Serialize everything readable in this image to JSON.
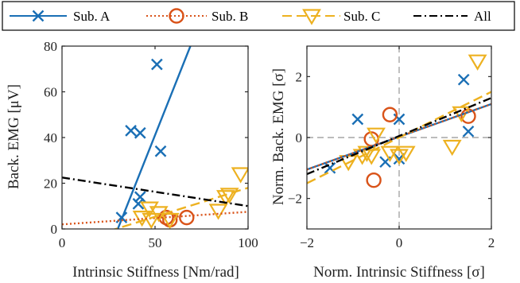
{
  "legend": {
    "entries": [
      {
        "label": "Sub. A",
        "color": "#1a6fb5",
        "marker": "x",
        "dash": ""
      },
      {
        "label": "Sub. B",
        "color": "#d95319",
        "marker": "circle",
        "dash": "2,3"
      },
      {
        "label": "Sub. C",
        "color": "#edb120",
        "marker": "triangle-down",
        "dash": "12,6"
      },
      {
        "label": "All",
        "color": "#000000",
        "marker": "none",
        "dash": "10,4,2,4"
      }
    ]
  },
  "chart_data": [
    {
      "type": "scatter",
      "xlabel": "Intrinsic Stiffness [Nm/rad]",
      "ylabel": "Back. EMG [μV]",
      "xlim": [
        0,
        100
      ],
      "ylim": [
        0,
        80
      ],
      "xticks": [
        0,
        50,
        100
      ],
      "yticks": [
        0,
        20,
        40,
        60,
        80
      ],
      "grid": false,
      "series": [
        {
          "name": "Sub. A",
          "x": [
            32,
            37,
            41,
            42,
            42,
            51,
            53
          ],
          "y": [
            5,
            43,
            11,
            14,
            42,
            72,
            34
          ],
          "fit": {
            "x": [
              29,
              69
            ],
            "y": [
              -2,
              80
            ]
          }
        },
        {
          "name": "Sub. B",
          "x": [
            56,
            58,
            67
          ],
          "y": [
            5,
            4,
            5
          ],
          "fit": {
            "x": [
              0,
              100
            ],
            "y": [
              2,
              7.5
            ]
          }
        },
        {
          "name": "Sub. C",
          "x": [
            43,
            47,
            48,
            52,
            58,
            84,
            88,
            90,
            96
          ],
          "y": [
            5,
            9,
            4,
            7,
            4,
            8,
            14,
            15,
            24
          ],
          "fit": {
            "x": [
              25,
              100
            ],
            "y": [
              -1,
              18
            ]
          }
        },
        {
          "name": "All",
          "x": [],
          "y": [],
          "fit": {
            "x": [
              0,
              100
            ],
            "y": [
              22.5,
              10
            ]
          }
        }
      ]
    },
    {
      "type": "scatter",
      "xlabel": "Norm. Intrinsic Stiffness [σ]",
      "ylabel": "Norm. Back. EMG [σ]",
      "xlim": [
        -2,
        2
      ],
      "ylim": [
        -3,
        3
      ],
      "xticks": [
        -2,
        0,
        2
      ],
      "yticks": [
        -2,
        0,
        2
      ],
      "grid": false,
      "zero_lines": true,
      "series": [
        {
          "name": "Sub. A",
          "x": [
            -1.5,
            -0.9,
            -0.3,
            0.0,
            0.0,
            1.5,
            1.4
          ],
          "y": [
            -1.0,
            0.6,
            -0.8,
            -0.7,
            0.6,
            0.2,
            1.9
          ],
          "fit": {
            "x": [
              -2,
              2
            ],
            "y": [
              -1.05,
              1.1
            ]
          }
        },
        {
          "name": "Sub. B",
          "x": [
            -0.55,
            -0.6,
            -0.2,
            1.5
          ],
          "y": [
            -1.4,
            -0.05,
            0.75,
            0.7
          ],
          "fit": {
            "x": [
              -2,
              2
            ],
            "y": [
              -1.05,
              1.1
            ]
          }
        },
        {
          "name": "Sub. C",
          "x": [
            -1.1,
            -0.8,
            -0.7,
            -0.6,
            -0.5,
            -0.2,
            0.0,
            0.15,
            1.15,
            1.35,
            1.7
          ],
          "y": [
            -0.8,
            -0.6,
            -0.5,
            -0.6,
            0.1,
            -0.5,
            -0.6,
            -0.5,
            -0.3,
            0.8,
            2.5
          ],
          "fit": {
            "x": [
              -2,
              2
            ],
            "y": [
              -1.5,
              1.5
            ]
          }
        },
        {
          "name": "All",
          "x": [],
          "y": [],
          "fit": {
            "x": [
              -2,
              2
            ],
            "y": [
              -1.2,
              1.3
            ]
          }
        }
      ]
    }
  ]
}
